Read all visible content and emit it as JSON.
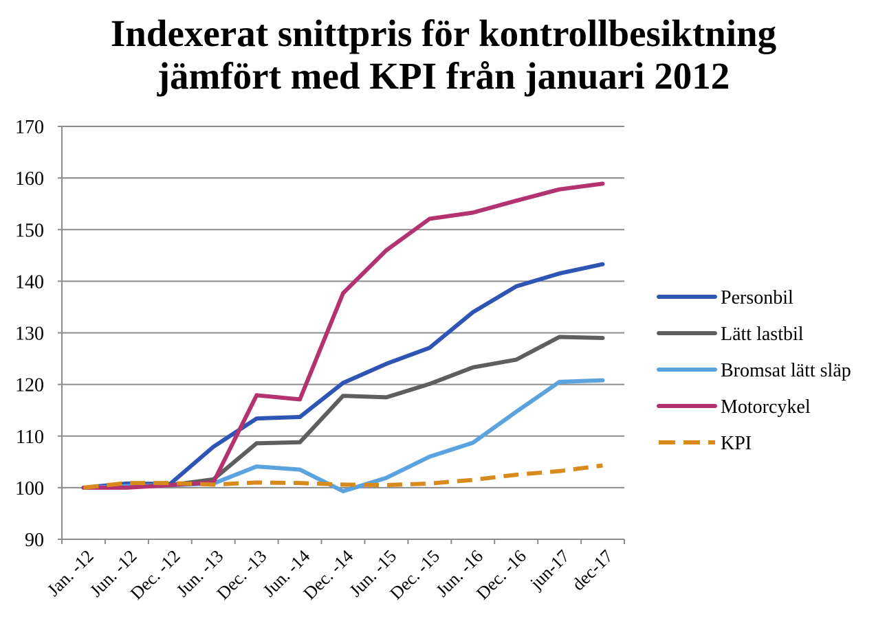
{
  "chart_data": {
    "type": "line",
    "title_lines": [
      "Indexerat snittpris för kontrollbesiktning",
      "jämfört med KPI från januari 2012"
    ],
    "xlabel": "",
    "ylabel": "",
    "categories": [
      "Jan. -12",
      "Jun. -12",
      "Dec. -12",
      "Jun. -13",
      "Dec. -13",
      "Jun. -14",
      "Dec. -14",
      "Jun. -15",
      "Dec. -15",
      "Jun. -16",
      "Dec. -16",
      "jun-17",
      "dec-17"
    ],
    "ylim": [
      90,
      170
    ],
    "yticks": [
      "90",
      "100",
      "110",
      "120",
      "130",
      "140",
      "150",
      "160",
      "170"
    ],
    "grid": true,
    "legend_position": "right",
    "series": [
      {
        "name": "Personbil",
        "color": "#2f55b4",
        "dashed": false,
        "values": [
          100,
          100.8,
          100.7,
          107.9,
          113.4,
          113.7,
          120.3,
          124.0,
          127.1,
          134.0,
          139.0,
          141.5,
          143.3
        ]
      },
      {
        "name": "Lätt lastbil",
        "color": "#5e5e5e",
        "dashed": false,
        "values": [
          100,
          100.3,
          100.5,
          101.6,
          108.6,
          108.8,
          117.8,
          117.5,
          120.1,
          123.3,
          124.8,
          129.2,
          129.0
        ]
      },
      {
        "name": "Bromsat lätt släp",
        "color": "#5aa3de",
        "dashed": false,
        "values": [
          100,
          100.3,
          100.5,
          100.8,
          104.1,
          103.5,
          99.3,
          101.9,
          106.0,
          108.7,
          114.7,
          120.5,
          120.8
        ]
      },
      {
        "name": "Motorcykel",
        "color": "#b2336f",
        "dashed": false,
        "values": [
          100,
          100.0,
          100.5,
          101.0,
          117.9,
          117.1,
          137.7,
          146.0,
          152.1,
          153.3,
          155.6,
          157.8,
          158.9
        ]
      },
      {
        "name": "KPI",
        "color": "#d88a1d",
        "dashed": true,
        "values": [
          100,
          100.9,
          100.9,
          100.6,
          101.0,
          100.9,
          100.6,
          100.5,
          100.8,
          101.5,
          102.5,
          103.2,
          104.3
        ]
      }
    ]
  }
}
